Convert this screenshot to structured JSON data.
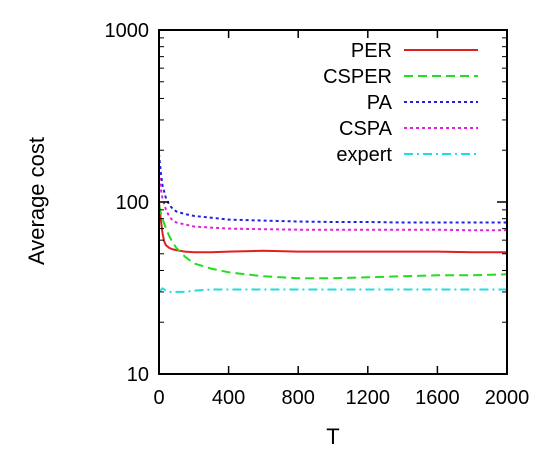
{
  "chart_data": {
    "type": "line",
    "title": "",
    "xlabel": "T",
    "ylabel": "Average cost",
    "xlim": [
      0,
      2000
    ],
    "ylim": [
      10,
      1000
    ],
    "yscale": "log",
    "grid": false,
    "legend_position": "top-right",
    "x_ticks": [
      0,
      400,
      800,
      1200,
      1600,
      2000
    ],
    "x_tick_labels": [
      "0",
      "400",
      "800",
      "1200",
      "1600",
      "2000"
    ],
    "y_ticks": [
      10,
      100,
      1000
    ],
    "y_tick_labels": [
      "10",
      "100",
      "1000"
    ],
    "series": [
      {
        "name": "PER",
        "color": "#e02020",
        "dash": "solid",
        "x": [
          0,
          10,
          20,
          30,
          40,
          60,
          80,
          100,
          150,
          200,
          300,
          400,
          600,
          800,
          1000,
          1200,
          1400,
          1600,
          1800,
          2000
        ],
        "y": [
          100,
          80,
          66,
          59,
          56,
          54,
          53,
          52.5,
          51.5,
          51,
          51,
          51.5,
          52,
          51.5,
          51.5,
          51.5,
          51.5,
          51.5,
          51,
          51
        ]
      },
      {
        "name": "CSPER",
        "color": "#22dd22",
        "dash": "dashed",
        "x": [
          0,
          20,
          40,
          60,
          80,
          100,
          150,
          200,
          300,
          400,
          500,
          600,
          700,
          800,
          900,
          1000,
          1200,
          1400,
          1600,
          1800,
          2000
        ],
        "y": [
          95,
          80,
          70,
          63,
          58,
          54,
          48,
          44,
          41,
          39,
          38,
          37,
          36.5,
          36,
          36,
          36,
          36.5,
          37,
          37.5,
          37.5,
          38
        ]
      },
      {
        "name": "PA",
        "color": "#2222dd",
        "dash": "dotted",
        "x": [
          0,
          10,
          20,
          40,
          60,
          80,
          100,
          150,
          200,
          300,
          400,
          600,
          800,
          1000,
          1200,
          1400,
          1600,
          1800,
          2000
        ],
        "y": [
          190,
          150,
          125,
          105,
          96,
          91,
          88,
          85,
          83,
          81,
          79,
          78,
          77,
          76.5,
          76.5,
          76,
          76,
          76,
          76
        ]
      },
      {
        "name": "CSPA",
        "color": "#dd22dd",
        "dash": "dotted",
        "x": [
          0,
          10,
          20,
          40,
          60,
          80,
          100,
          150,
          200,
          300,
          400,
          600,
          800,
          1000,
          1200,
          1400,
          1600,
          1800,
          2000
        ],
        "y": [
          150,
          120,
          105,
          90,
          82,
          78,
          76,
          74,
          72,
          71,
          70,
          69.5,
          69,
          69,
          69,
          69,
          69,
          68.5,
          68.5
        ]
      },
      {
        "name": "expert",
        "color": "#22dddd",
        "dash": "dashdot",
        "x": [
          0,
          20,
          40,
          60,
          80,
          100,
          150,
          200,
          300,
          400,
          600,
          800,
          1000,
          1200,
          1400,
          1600,
          1800,
          2000
        ],
        "y": [
          30,
          31.5,
          30.5,
          30,
          30,
          30,
          30,
          30.5,
          31,
          31,
          31,
          31,
          31,
          31,
          31,
          31,
          31,
          31
        ]
      }
    ]
  }
}
